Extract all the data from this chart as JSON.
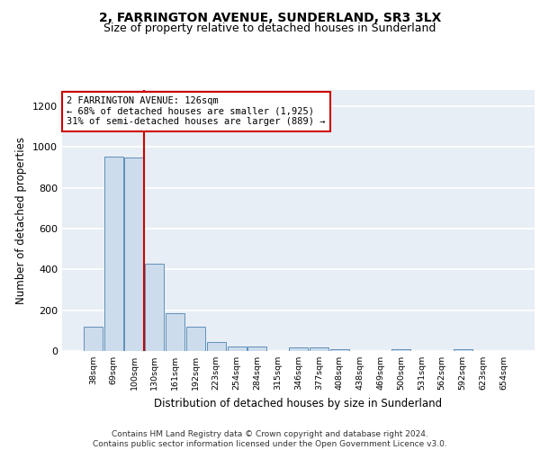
{
  "title": "2, FARRINGTON AVENUE, SUNDERLAND, SR3 3LX",
  "subtitle": "Size of property relative to detached houses in Sunderland",
  "xlabel": "Distribution of detached houses by size in Sunderland",
  "ylabel": "Number of detached properties",
  "categories": [
    "38sqm",
    "69sqm",
    "100sqm",
    "130sqm",
    "161sqm",
    "192sqm",
    "223sqm",
    "254sqm",
    "284sqm",
    "315sqm",
    "346sqm",
    "377sqm",
    "408sqm",
    "438sqm",
    "469sqm",
    "500sqm",
    "531sqm",
    "562sqm",
    "592sqm",
    "623sqm",
    "654sqm"
  ],
  "values": [
    120,
    955,
    950,
    430,
    185,
    120,
    45,
    22,
    22,
    0,
    18,
    18,
    10,
    0,
    0,
    10,
    0,
    0,
    10,
    0,
    0
  ],
  "bar_color": "#ccdcec",
  "bar_edge_color": "#6090b8",
  "vline_color": "#cc0000",
  "annotation_text": "2 FARRINGTON AVENUE: 126sqm\n← 68% of detached houses are smaller (1,925)\n31% of semi-detached houses are larger (889) →",
  "annotation_box_color": "#ffffff",
  "annotation_box_edge": "#cc0000",
  "ylim": [
    0,
    1280
  ],
  "yticks": [
    0,
    200,
    400,
    600,
    800,
    1000,
    1200
  ],
  "bg_color": "#e8eef5",
  "grid_color": "#ffffff",
  "footer": "Contains HM Land Registry data © Crown copyright and database right 2024.\nContains public sector information licensed under the Open Government Licence v3.0.",
  "title_fontsize": 10,
  "subtitle_fontsize": 9,
  "xlabel_fontsize": 8.5,
  "ylabel_fontsize": 8.5,
  "footer_fontsize": 6.5
}
